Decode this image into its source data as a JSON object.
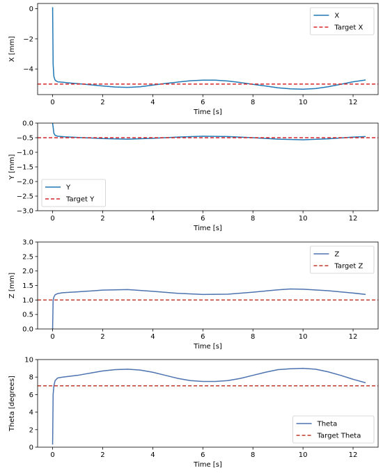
{
  "chart_data": [
    {
      "type": "line",
      "xlabel": "Time [s]",
      "ylabel": "X [mm]",
      "xlim": [
        -0.6,
        13.0
      ],
      "ylim": [
        -5.7,
        0.35
      ],
      "xticks": [
        0,
        2,
        4,
        6,
        8,
        10,
        12
      ],
      "yticks": [
        0,
        -2,
        -4
      ],
      "ytick_labels": [
        "0",
        "−2",
        "−4"
      ],
      "legend_position": "top-right",
      "series": [
        {
          "name": "X",
          "style": "solid",
          "color": "#1f77b4",
          "x": [
            0,
            0.02,
            0.05,
            0.1,
            0.2,
            0.4,
            0.7,
            1.0,
            1.5,
            2.0,
            2.5,
            3.0,
            3.5,
            4.0,
            4.5,
            5.0,
            5.5,
            6.0,
            6.5,
            7.0,
            7.5,
            8.0,
            8.5,
            9.0,
            9.5,
            10.0,
            10.5,
            11.0,
            11.5,
            12.0,
            12.5
          ],
          "y": [
            0.1,
            -3.7,
            -4.5,
            -4.75,
            -4.85,
            -4.88,
            -4.93,
            -4.97,
            -5.05,
            -5.13,
            -5.2,
            -5.22,
            -5.18,
            -5.07,
            -4.96,
            -4.87,
            -4.78,
            -4.74,
            -4.74,
            -4.8,
            -4.9,
            -5.02,
            -5.13,
            -5.25,
            -5.32,
            -5.34,
            -5.3,
            -5.18,
            -5.02,
            -4.85,
            -4.73
          ]
        },
        {
          "name": "Target X",
          "style": "dashed",
          "color": "#d62728",
          "x": [
            -0.6,
            13.0
          ],
          "y": [
            -5.0,
            -5.0
          ]
        }
      ]
    },
    {
      "type": "line",
      "xlabel": "Time [s]",
      "ylabel": "Y [mm]",
      "xlim": [
        -0.6,
        13.0
      ],
      "ylim": [
        -3.0,
        0.0
      ],
      "xticks": [
        0,
        2,
        4,
        6,
        8,
        10,
        12
      ],
      "yticks": [
        0.0,
        -0.5,
        -1.0,
        -1.5,
        -2.0,
        -2.5,
        -3.0
      ],
      "ytick_labels": [
        "0.0",
        "−0.5",
        "−1.0",
        "−1.5",
        "−2.0",
        "−2.5",
        "−3.0"
      ],
      "legend_position": "bottom-left",
      "series": [
        {
          "name": "Y",
          "style": "solid",
          "color": "#1f77b4",
          "x": [
            0,
            0.05,
            0.1,
            0.2,
            0.5,
            1.0,
            2.0,
            3.0,
            4.0,
            5.0,
            6.0,
            7.0,
            8.0,
            9.0,
            10.0,
            11.0,
            12.0,
            12.5
          ],
          "y": [
            0.0,
            -0.35,
            -0.42,
            -0.45,
            -0.47,
            -0.49,
            -0.53,
            -0.55,
            -0.52,
            -0.48,
            -0.45,
            -0.46,
            -0.5,
            -0.55,
            -0.57,
            -0.54,
            -0.48,
            -0.46
          ]
        },
        {
          "name": "Target Y",
          "style": "dashed",
          "color": "#d62728",
          "x": [
            -0.6,
            13.0
          ],
          "y": [
            -0.5,
            -0.5
          ]
        }
      ]
    },
    {
      "type": "line",
      "xlabel": "Time [s]",
      "ylabel": "Z [mm]",
      "xlim": [
        -0.6,
        13.0
      ],
      "ylim": [
        0.0,
        3.0
      ],
      "xticks": [
        0,
        2,
        4,
        6,
        8,
        10,
        12
      ],
      "yticks": [
        0.0,
        0.5,
        1.0,
        1.5,
        2.0,
        2.5,
        3.0
      ],
      "ytick_labels": [
        "0.0",
        "0.5",
        "1.0",
        "1.5",
        "2.0",
        "2.5",
        "3.0"
      ],
      "legend_position": "top-right",
      "series": [
        {
          "name": "Z",
          "style": "solid",
          "color": "#4c72b0",
          "x": [
            0,
            0.02,
            0.05,
            0.1,
            0.2,
            0.4,
            1.0,
            2.0,
            3.0,
            4.0,
            5.0,
            6.0,
            7.0,
            8.0,
            9.0,
            9.5,
            10.0,
            11.0,
            12.0,
            12.5
          ],
          "y": [
            0.0,
            1.0,
            1.1,
            1.18,
            1.22,
            1.25,
            1.28,
            1.34,
            1.36,
            1.3,
            1.23,
            1.19,
            1.2,
            1.27,
            1.35,
            1.38,
            1.37,
            1.32,
            1.24,
            1.19
          ]
        },
        {
          "name": "Target Z",
          "style": "dashed",
          "color": "#c0392b",
          "x": [
            -0.6,
            13.0
          ],
          "y": [
            1.0,
            1.0
          ]
        }
      ]
    },
    {
      "type": "line",
      "xlabel": "Time [s]",
      "ylabel": "Theta [degrees]",
      "xlim": [
        -0.6,
        13.0
      ],
      "ylim": [
        0,
        10
      ],
      "xticks": [
        0,
        2,
        4,
        6,
        8,
        10,
        12
      ],
      "yticks": [
        0,
        2,
        4,
        6,
        8,
        10
      ],
      "ytick_labels": [
        "0",
        "2",
        "4",
        "6",
        "8",
        "10"
      ],
      "legend_position": "bottom-right",
      "series": [
        {
          "name": "Theta",
          "style": "solid",
          "color": "#4c72b0",
          "x": [
            0,
            0.02,
            0.05,
            0.1,
            0.2,
            0.4,
            1.0,
            1.5,
            2.0,
            2.5,
            3.0,
            3.5,
            4.0,
            4.5,
            5.0,
            5.5,
            6.0,
            6.5,
            7.0,
            7.5,
            8.0,
            8.5,
            9.0,
            9.5,
            10.0,
            10.5,
            11.0,
            11.5,
            12.0,
            12.5
          ],
          "y": [
            0.3,
            6.0,
            7.0,
            7.6,
            7.9,
            8.0,
            8.2,
            8.45,
            8.7,
            8.85,
            8.9,
            8.8,
            8.55,
            8.2,
            7.85,
            7.6,
            7.5,
            7.5,
            7.6,
            7.85,
            8.2,
            8.55,
            8.85,
            8.95,
            9.0,
            8.9,
            8.6,
            8.2,
            7.75,
            7.35
          ]
        },
        {
          "name": "Target Theta",
          "style": "dashed",
          "color": "#c0392b",
          "x": [
            -0.6,
            13.0
          ],
          "y": [
            7.0,
            7.0
          ]
        }
      ]
    }
  ]
}
